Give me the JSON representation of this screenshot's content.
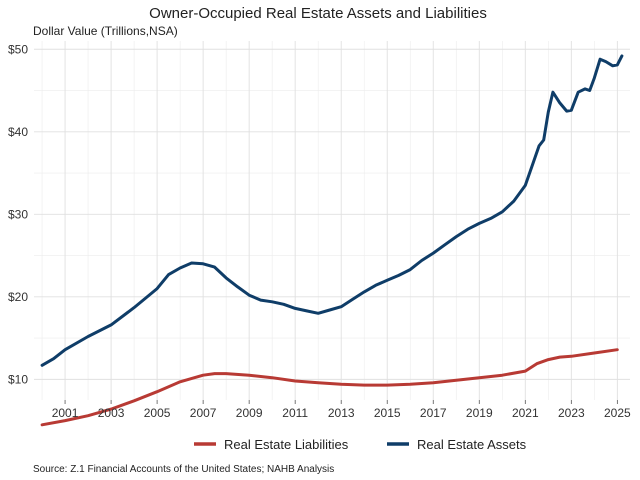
{
  "chart_data": {
    "type": "line",
    "title": "Owner-Occupied Real Estate Assets and Liabilities",
    "ylabel": "Dollar Value (Trillions,NSA)",
    "xlabel": "",
    "caption": "Source: Z.1 Financial Accounts of the United States; NAHB Analysis",
    "xlim": [
      1999.65,
      2025.55
    ],
    "ylim": [
      7.5,
      51
    ],
    "x_ticks": [
      2001,
      2003,
      2005,
      2007,
      2009,
      2011,
      2013,
      2015,
      2017,
      2019,
      2021,
      2023,
      2025
    ],
    "x_tick_labels": [
      "2001",
      "2003",
      "2005",
      "2007",
      "2009",
      "2011",
      "2013",
      "2015",
      "2017",
      "2019",
      "2021",
      "2023",
      "2025"
    ],
    "y_ticks": [
      10,
      20,
      30,
      40,
      50
    ],
    "y_tick_labels": [
      "$10",
      "$20",
      "$30",
      "$40",
      "$50"
    ],
    "grid": true,
    "legend_position": "bottom",
    "series": [
      {
        "name": "Real Estate Liabilities",
        "color": "#b83a34",
        "x": [
          2000.0,
          2001.0,
          2002.0,
          2003.0,
          2004.0,
          2005.0,
          2006.0,
          2007.0,
          2007.5,
          2008.0,
          2009.0,
          2010.0,
          2011.0,
          2012.0,
          2013.0,
          2014.0,
          2015.0,
          2016.0,
          2017.0,
          2018.0,
          2019.0,
          2020.0,
          2021.0,
          2021.5,
          2022.0,
          2022.5,
          2023.0,
          2024.0,
          2025.0
        ],
        "values": [
          4.5,
          5.0,
          5.6,
          6.4,
          7.4,
          8.5,
          9.7,
          10.5,
          10.7,
          10.7,
          10.5,
          10.2,
          9.8,
          9.6,
          9.4,
          9.3,
          9.3,
          9.4,
          9.6,
          9.9,
          10.2,
          10.5,
          11.0,
          11.9,
          12.4,
          12.7,
          12.8,
          13.2,
          13.6
        ]
      },
      {
        "name": "Real Estate Assets",
        "color": "#0f3d68",
        "x": [
          2000.0,
          2000.5,
          2001.0,
          2002.0,
          2003.0,
          2004.0,
          2005.0,
          2005.5,
          2006.0,
          2006.5,
          2007.0,
          2007.5,
          2008.0,
          2008.5,
          2009.0,
          2009.5,
          2010.0,
          2010.5,
          2011.0,
          2011.5,
          2012.0,
          2012.5,
          2013.0,
          2013.5,
          2014.0,
          2014.5,
          2015.0,
          2015.5,
          2016.0,
          2016.5,
          2017.0,
          2017.5,
          2018.0,
          2018.5,
          2019.0,
          2019.5,
          2020.0,
          2020.5,
          2021.0,
          2021.3,
          2021.6,
          2021.8,
          2022.0,
          2022.2,
          2022.5,
          2022.8,
          2023.0,
          2023.3,
          2023.6,
          2023.8,
          2024.0,
          2024.25,
          2024.5,
          2024.8,
          2025.0,
          2025.2
        ],
        "values": [
          11.7,
          12.5,
          13.6,
          15.2,
          16.6,
          18.7,
          21.0,
          22.7,
          23.5,
          24.1,
          24.0,
          23.6,
          22.3,
          21.2,
          20.2,
          19.6,
          19.4,
          19.1,
          18.6,
          18.3,
          18.0,
          18.4,
          18.8,
          19.7,
          20.6,
          21.4,
          22.0,
          22.6,
          23.3,
          24.4,
          25.3,
          26.3,
          27.3,
          28.2,
          28.9,
          29.5,
          30.3,
          31.6,
          33.5,
          35.9,
          38.3,
          39.0,
          42.4,
          44.8,
          43.5,
          42.5,
          42.6,
          44.8,
          45.2,
          45.0,
          46.5,
          48.8,
          48.5,
          48.0,
          48.1,
          49.2
        ]
      }
    ]
  }
}
